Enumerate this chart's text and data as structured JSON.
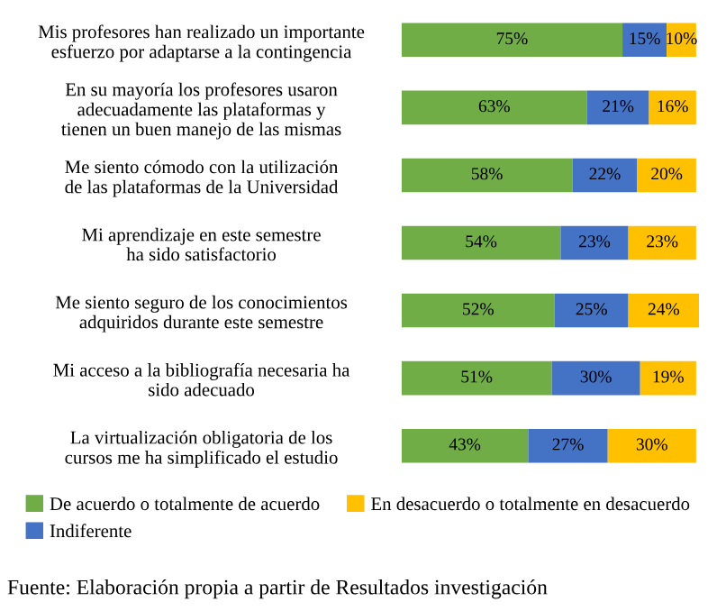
{
  "chart_data": {
    "type": "bar",
    "orientation": "horizontal",
    "stacked": true,
    "tick_labels": "y",
    "legend": "bottom",
    "grid": false,
    "categories": [
      "Mis profesores han realizado un importante\nesfuerzo por adaptarse a la contingencia",
      "En su mayoría los profesores usaron\nadecuadamente las plataformas y\ntienen un buen manejo de las mismas",
      "Me siento cómodo con la utilización\nde las plataformas de la Universidad",
      "Mi aprendizaje en este semestre\nha sido satisfactorio",
      "Me siento seguro de los conocimientos\nadquiridos durante este semestre",
      "Mi acceso a la bibliografía necesaria ha\nsido adecuado",
      "La virtualización obligatoria de los\ncursos me ha simplificado el estudio"
    ],
    "series": [
      {
        "name": "De acuerdo o totalmente de acuerdo",
        "color": "#70ad47",
        "values": [
          75,
          63,
          58,
          54,
          52,
          51,
          43
        ],
        "value_labels": [
          "75%",
          "63%",
          "58%",
          "54%",
          "52%",
          "51%",
          "43%"
        ]
      },
      {
        "name": "Indiferente",
        "color": "#4472c4",
        "values": [
          15,
          21,
          22,
          23,
          25,
          30,
          27
        ],
        "value_labels": [
          "15%",
          "21%",
          "22%",
          "23%",
          "25%",
          "30%",
          "27%"
        ]
      },
      {
        "name": "En desacuerdo o totalmente en desacuerdo",
        "color": "#ffc000",
        "values": [
          10,
          16,
          20,
          23,
          24,
          19,
          30
        ],
        "value_labels": [
          "10%",
          "16%",
          "20%",
          "23%",
          "24%",
          "19%",
          "30%"
        ]
      }
    ],
    "annotations": [
      "Fuente: Elaboración propia a partir de Resultados investigación"
    ]
  }
}
